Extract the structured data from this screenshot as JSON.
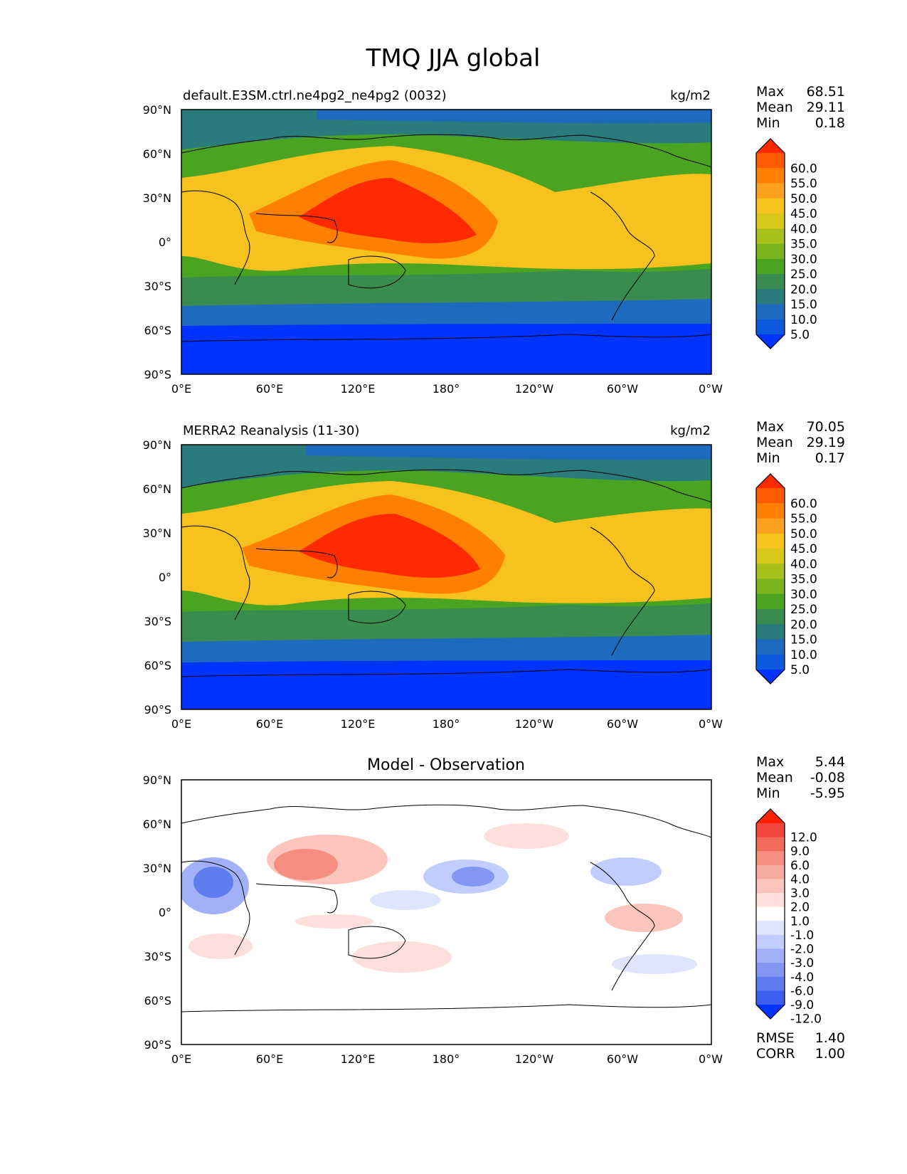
{
  "title": "TMQ JJA global",
  "x_ticks": [
    "0°E",
    "60°E",
    "120°E",
    "180°",
    "120°W",
    "60°W",
    "0°W"
  ],
  "y_ticks": [
    "90°N",
    "60°N",
    "30°N",
    "0°",
    "30°S",
    "60°S",
    "90°S"
  ],
  "stat_labels": [
    "Max",
    "Mean",
    "Min"
  ],
  "panels": [
    {
      "id": "model",
      "left_title": "default.E3SM.ctrl.ne4pg2_ne4pg2 (0032)",
      "center_title": "",
      "units": "kg/m2",
      "stats": [
        "68.51",
        "29.11",
        "0.18"
      ],
      "colorbar_ticks": [
        "60.0",
        "55.0",
        "50.0",
        "45.0",
        "40.0",
        "35.0",
        "30.0",
        "25.0",
        "20.0",
        "15.0",
        "10.0",
        "5.0"
      ],
      "colorbar_colors": [
        "#ff2a00",
        "#ff5a00",
        "#ff7f00",
        "#fca21f",
        "#f7c21e",
        "#d7c81b",
        "#a8c01c",
        "#7cb31c",
        "#4aa321",
        "#3a8b50",
        "#2a7b7b",
        "#1d6abf",
        "#0c5adb",
        "#0033ff"
      ]
    },
    {
      "id": "obs",
      "left_title": "MERRA2 Reanalysis (11-30)",
      "center_title": "",
      "units": "kg/m2",
      "stats": [
        "70.05",
        "29.19",
        "0.17"
      ],
      "colorbar_ticks": [
        "60.0",
        "55.0",
        "50.0",
        "45.0",
        "40.0",
        "35.0",
        "30.0",
        "25.0",
        "20.0",
        "15.0",
        "10.0",
        "5.0"
      ],
      "colorbar_colors": [
        "#ff2a00",
        "#ff5a00",
        "#ff7f00",
        "#fca21f",
        "#f7c21e",
        "#d7c81b",
        "#a8c01c",
        "#7cb31c",
        "#4aa321",
        "#3a8b50",
        "#2a7b7b",
        "#1d6abf",
        "#0c5adb",
        "#0033ff"
      ]
    },
    {
      "id": "diff",
      "left_title": "",
      "center_title": "Model - Observation",
      "units": "",
      "stats": [
        "5.44",
        "-0.08",
        "-5.95"
      ],
      "colorbar_ticks": [
        "12.0",
        "9.0",
        "6.0",
        "4.0",
        "3.0",
        "2.0",
        "1.0",
        "-1.0",
        "-2.0",
        "-3.0",
        "-4.0",
        "-6.0",
        "-9.0",
        "-12.0"
      ],
      "colorbar_colors": [
        "#ff2200",
        "#f4453a",
        "#f26a5a",
        "#f58d80",
        "#f7aaa0",
        "#fac5bd",
        "#fde0db",
        "#ffffff",
        "#dfe4ff",
        "#c1ccff",
        "#a2b1f7",
        "#8397f2",
        "#5f7bed",
        "#3d5eef",
        "#0033ff"
      ],
      "rmse_label": "RMSE",
      "rmse": "1.40",
      "corr_label": "CORR",
      "corr": "1.00"
    }
  ]
}
